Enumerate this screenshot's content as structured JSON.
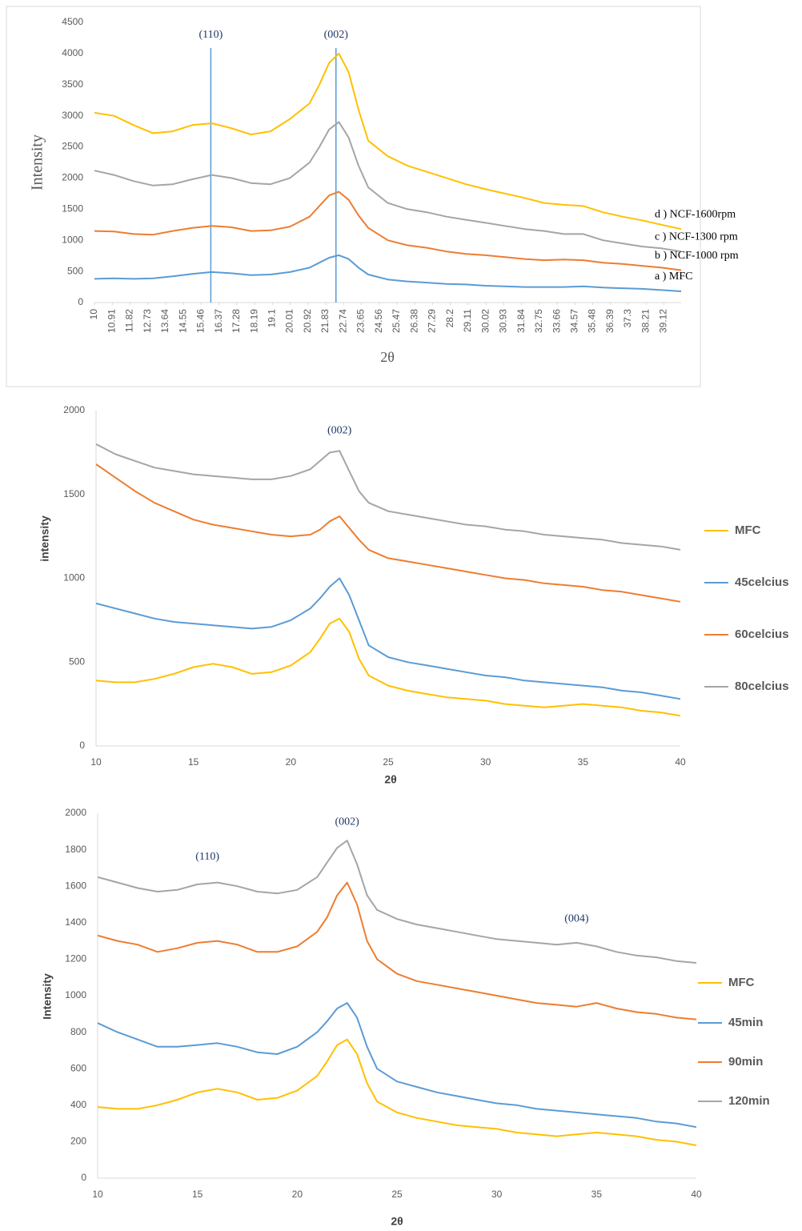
{
  "chart_data": [
    {
      "type": "line",
      "xlabel": "2θ",
      "ylabel": "Intensity",
      "legend": "line-end",
      "xlim": [
        10,
        40
      ],
      "ylim": [
        0,
        4500
      ],
      "xticks": [
        10,
        10.91,
        11.82,
        12.73,
        13.64,
        14.55,
        15.46,
        16.37,
        17.28,
        18.19,
        19.1,
        20.01,
        20.92,
        21.83,
        22.74,
        23.65,
        24.56,
        25.47,
        26.38,
        27.29,
        28.2,
        29.11,
        30.02,
        30.93,
        31.84,
        32.75,
        33.66,
        34.57,
        35.48,
        36.39,
        37.3,
        38.21,
        39.12
      ],
      "yticks": [
        0,
        500,
        1000,
        1500,
        2000,
        2500,
        3000,
        3500,
        4000,
        4500
      ],
      "vlines": [
        15.95,
        22.35
      ],
      "vline_color": "#5b9bd5",
      "annotations": [
        {
          "text": "(110)",
          "x": 15.95,
          "y": 4300
        },
        {
          "text": "(002)",
          "x": 22.35,
          "y": 4300
        }
      ],
      "x": [
        10,
        11,
        12,
        13,
        14,
        15,
        16,
        17,
        18,
        19,
        20,
        21,
        21.5,
        22,
        22.5,
        23,
        23.5,
        24,
        25,
        26,
        27,
        28,
        29,
        30,
        31,
        32,
        33,
        34,
        35,
        36,
        37,
        38,
        39,
        40
      ],
      "series": [
        {
          "name": "a ) MFC",
          "color": "#5b9bd5",
          "values": [
            380,
            390,
            380,
            390,
            420,
            460,
            490,
            470,
            440,
            450,
            490,
            560,
            640,
            720,
            760,
            700,
            560,
            450,
            370,
            340,
            320,
            300,
            290,
            270,
            260,
            250,
            250,
            250,
            260,
            240,
            230,
            220,
            200,
            180
          ]
        },
        {
          "name": "b ) NCF-1000 rpm",
          "color": "#ed7d31",
          "values": [
            1150,
            1140,
            1100,
            1090,
            1150,
            1200,
            1230,
            1210,
            1150,
            1160,
            1220,
            1380,
            1550,
            1720,
            1780,
            1650,
            1400,
            1200,
            1000,
            920,
            880,
            820,
            780,
            760,
            730,
            700,
            680,
            690,
            680,
            640,
            620,
            590,
            560,
            520
          ]
        },
        {
          "name": "c ) NCF-1300 rpm",
          "color": "#a5a5a5",
          "values": [
            2120,
            2050,
            1950,
            1880,
            1900,
            1980,
            2050,
            2000,
            1920,
            1900,
            2000,
            2250,
            2500,
            2780,
            2900,
            2650,
            2200,
            1850,
            1600,
            1500,
            1450,
            1380,
            1330,
            1280,
            1230,
            1180,
            1150,
            1100,
            1100,
            1000,
            950,
            900,
            870,
            820
          ]
        },
        {
          "name": "d ) NCF-1600rpm",
          "color": "#ffc000",
          "values": [
            3050,
            3000,
            2850,
            2720,
            2750,
            2850,
            2880,
            2800,
            2700,
            2750,
            2950,
            3200,
            3500,
            3850,
            4000,
            3700,
            3100,
            2600,
            2350,
            2200,
            2100,
            2000,
            1900,
            1820,
            1750,
            1680,
            1600,
            1570,
            1550,
            1450,
            1380,
            1320,
            1250,
            1180
          ]
        }
      ]
    },
    {
      "type": "line",
      "xlabel": "2θ",
      "ylabel": "intensity",
      "legend": "right",
      "xlim": [
        10,
        40
      ],
      "ylim": [
        0,
        2000
      ],
      "xticks": [
        10,
        15,
        20,
        25,
        30,
        35,
        40
      ],
      "yticks": [
        0,
        500,
        1000,
        1500,
        2000
      ],
      "annotations": [
        {
          "text": "(002)",
          "x": 22.5,
          "y": 1880
        }
      ],
      "x": [
        10,
        11,
        12,
        13,
        14,
        15,
        16,
        17,
        18,
        19,
        20,
        21,
        21.5,
        22,
        22.5,
        23,
        23.5,
        24,
        25,
        26,
        27,
        28,
        29,
        30,
        31,
        32,
        33,
        34,
        35,
        36,
        37,
        38,
        39,
        40
      ],
      "series": [
        {
          "name": "MFC",
          "color": "#ffc000",
          "values": [
            390,
            380,
            380,
            400,
            430,
            470,
            490,
            470,
            430,
            440,
            480,
            560,
            640,
            730,
            760,
            680,
            520,
            420,
            360,
            330,
            310,
            290,
            280,
            270,
            250,
            240,
            230,
            240,
            250,
            240,
            230,
            210,
            200,
            180
          ]
        },
        {
          "name": "45celcius",
          "color": "#5b9bd5",
          "values": [
            850,
            820,
            790,
            760,
            740,
            730,
            720,
            710,
            700,
            710,
            750,
            820,
            880,
            950,
            1000,
            900,
            750,
            600,
            530,
            500,
            480,
            460,
            440,
            420,
            410,
            390,
            380,
            370,
            360,
            350,
            330,
            320,
            300,
            280
          ]
        },
        {
          "name": "60celcius",
          "color": "#ed7d31",
          "values": [
            1680,
            1600,
            1520,
            1450,
            1400,
            1350,
            1320,
            1300,
            1280,
            1260,
            1250,
            1260,
            1290,
            1340,
            1370,
            1300,
            1230,
            1170,
            1120,
            1100,
            1080,
            1060,
            1040,
            1020,
            1000,
            990,
            970,
            960,
            950,
            930,
            920,
            900,
            880,
            860
          ]
        },
        {
          "name": "80celcius",
          "color": "#a5a5a5",
          "values": [
            1800,
            1740,
            1700,
            1660,
            1640,
            1620,
            1610,
            1600,
            1590,
            1590,
            1610,
            1650,
            1700,
            1750,
            1760,
            1640,
            1520,
            1450,
            1400,
            1380,
            1360,
            1340,
            1320,
            1310,
            1290,
            1280,
            1260,
            1250,
            1240,
            1230,
            1210,
            1200,
            1190,
            1170
          ]
        }
      ]
    },
    {
      "type": "line",
      "xlabel": "2θ",
      "ylabel": "Intensity",
      "legend": "right",
      "xlim": [
        10,
        40
      ],
      "ylim": [
        0,
        2000
      ],
      "xticks": [
        10,
        15,
        20,
        25,
        30,
        35,
        40
      ],
      "yticks": [
        0,
        200,
        400,
        600,
        800,
        1000,
        1200,
        1400,
        1600,
        1800,
        2000
      ],
      "annotations": [
        {
          "text": "(110)",
          "x": 15.5,
          "y": 1760
        },
        {
          "text": "(002)",
          "x": 22.5,
          "y": 1950
        },
        {
          "text": "(004)",
          "x": 34,
          "y": 1420
        }
      ],
      "x": [
        10,
        11,
        12,
        13,
        14,
        15,
        16,
        17,
        18,
        19,
        20,
        21,
        21.5,
        22,
        22.5,
        23,
        23.5,
        24,
        25,
        26,
        27,
        28,
        29,
        30,
        31,
        32,
        33,
        34,
        35,
        36,
        37,
        38,
        39,
        40
      ],
      "series": [
        {
          "name": "MFC",
          "color": "#ffc000",
          "values": [
            390,
            380,
            380,
            400,
            430,
            470,
            490,
            470,
            430,
            440,
            480,
            560,
            640,
            730,
            760,
            680,
            520,
            420,
            360,
            330,
            310,
            290,
            280,
            270,
            250,
            240,
            230,
            240,
            250,
            240,
            230,
            210,
            200,
            180
          ]
        },
        {
          "name": "45min",
          "color": "#5b9bd5",
          "values": [
            850,
            800,
            760,
            720,
            720,
            730,
            740,
            720,
            690,
            680,
            720,
            800,
            860,
            930,
            960,
            880,
            720,
            600,
            530,
            500,
            470,
            450,
            430,
            410,
            400,
            380,
            370,
            360,
            350,
            340,
            330,
            310,
            300,
            280
          ]
        },
        {
          "name": "90min",
          "color": "#ed7d31",
          "values": [
            1330,
            1300,
            1280,
            1240,
            1260,
            1290,
            1300,
            1280,
            1240,
            1240,
            1270,
            1350,
            1430,
            1550,
            1620,
            1500,
            1300,
            1200,
            1120,
            1080,
            1060,
            1040,
            1020,
            1000,
            980,
            960,
            950,
            940,
            960,
            930,
            910,
            900,
            880,
            870
          ]
        },
        {
          "name": "120min",
          "color": "#a5a5a5",
          "values": [
            1650,
            1620,
            1590,
            1570,
            1580,
            1610,
            1620,
            1600,
            1570,
            1560,
            1580,
            1650,
            1730,
            1810,
            1850,
            1720,
            1550,
            1470,
            1420,
            1390,
            1370,
            1350,
            1330,
            1310,
            1300,
            1290,
            1280,
            1290,
            1270,
            1240,
            1220,
            1210,
            1190,
            1180
          ]
        }
      ]
    }
  ]
}
